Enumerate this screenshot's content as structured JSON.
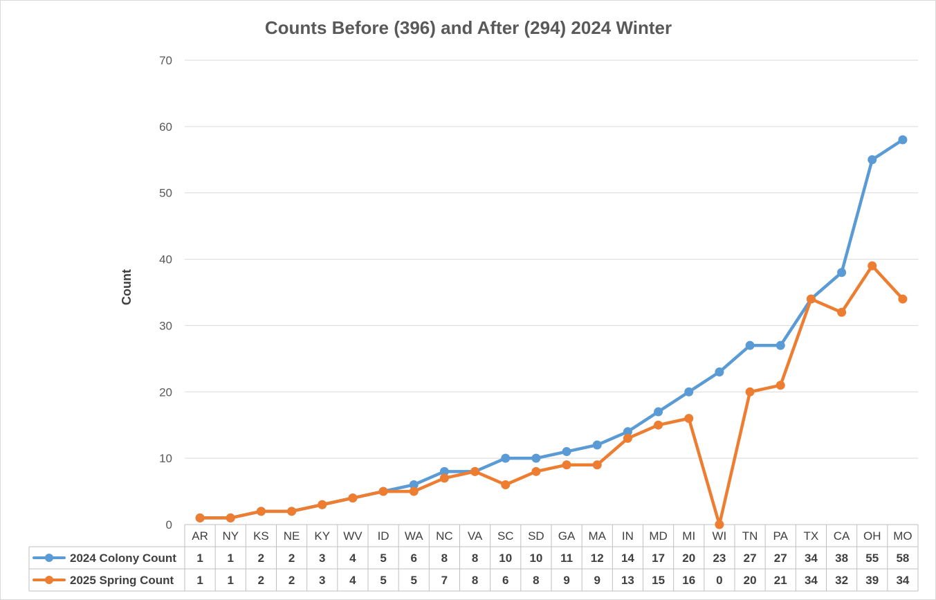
{
  "chart_data": {
    "type": "line",
    "title": "Counts Before (396) and After (294) 2024 Winter",
    "xlabel": "",
    "ylabel": "Count",
    "ylim": [
      0,
      70
    ],
    "yticks": [
      0,
      10,
      20,
      30,
      40,
      50,
      60,
      70
    ],
    "grid": true,
    "legend_placement": "data-table-left",
    "categories": [
      "AR",
      "NY",
      "KS",
      "NE",
      "KY",
      "WV",
      "ID",
      "WA",
      "NC",
      "VA",
      "SC",
      "SD",
      "GA",
      "MA",
      "IN",
      "MD",
      "MI",
      "WI",
      "TN",
      "PA",
      "TX",
      "CA",
      "OH",
      "MO"
    ],
    "series": [
      {
        "name": "2024 Colony Count",
        "color": "#5b9bd5",
        "values": [
          1,
          1,
          2,
          2,
          3,
          4,
          5,
          6,
          8,
          8,
          10,
          10,
          11,
          12,
          14,
          17,
          20,
          23,
          27,
          27,
          34,
          38,
          55,
          58
        ]
      },
      {
        "name": "2025 Spring Count",
        "color": "#ed7d31",
        "values": [
          1,
          1,
          2,
          2,
          3,
          4,
          5,
          5,
          7,
          8,
          6,
          8,
          9,
          9,
          13,
          15,
          16,
          0,
          20,
          21,
          34,
          32,
          39,
          34
        ]
      }
    ]
  }
}
